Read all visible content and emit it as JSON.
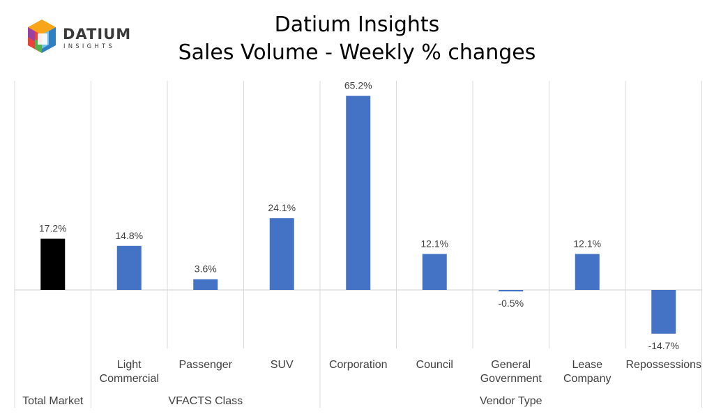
{
  "logo": {
    "word": "DATIUM",
    "sub": "INSIGHTS"
  },
  "chart_data": {
    "type": "bar",
    "title": "Datium Insights",
    "subtitle": "Sales Volume - Weekly % changes",
    "categories": [
      "",
      "Light Commercial",
      "Passenger",
      "SUV",
      "Corporation",
      "Council",
      "General Government",
      "Lease Company",
      "Repossessions"
    ],
    "category_lines": [
      [
        ""
      ],
      [
        "Light",
        "Commercial"
      ],
      [
        "Passenger"
      ],
      [
        "SUV"
      ],
      [
        "Corporation"
      ],
      [
        "Council"
      ],
      [
        "General",
        "Government"
      ],
      [
        "Lease",
        "Company"
      ],
      [
        "Repossessions"
      ]
    ],
    "values": [
      17.2,
      14.8,
      3.6,
      24.1,
      65.2,
      12.1,
      -0.5,
      12.1,
      -14.7
    ],
    "data_labels": [
      "17.2%",
      "14.8%",
      "3.6%",
      "24.1%",
      "65.2%",
      "12.1%",
      "-0.5%",
      "12.1%",
      "-14.7%"
    ],
    "groups": [
      {
        "label": "Total Market",
        "start": 0,
        "end": 0
      },
      {
        "label": "VFACTS Class",
        "start": 1,
        "end": 3
      },
      {
        "label": "Vendor Type",
        "start": 4,
        "end": 8
      }
    ],
    "colors": {
      "total": "#000000",
      "default": "#4472C4"
    },
    "xlabel": "",
    "ylabel": "",
    "grid": true
  }
}
